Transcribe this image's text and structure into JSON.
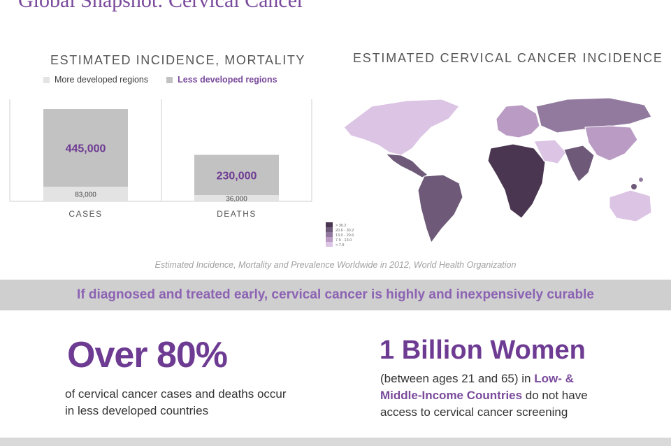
{
  "page": {
    "title": "Global Snapshot: Cervical Cancer",
    "source": "Estimated Incidence, Mortality and Prevalence Worldwide in 2012, World Health Organization",
    "banner": "If diagnosed and treated early,  cervical cancer is highly and inexpensively curable"
  },
  "colors": {
    "purple": "#6e3b93",
    "accent": "#8c62b3",
    "more_developed": "#e3e3e3",
    "less_developed": "#c2c2c2"
  },
  "chart_data": [
    {
      "type": "bar",
      "stacked": true,
      "title": "ESTIMATED INCIDENCE, MORTALITY",
      "categories": [
        "CASES",
        "DEATHS"
      ],
      "series": [
        {
          "name": "More developed regions",
          "values": [
            83000,
            36000
          ]
        },
        {
          "name": "Less developed regions",
          "values": [
            445000,
            230000
          ]
        }
      ],
      "data_labels": {
        "more_developed": [
          "83,000",
          "36,000"
        ],
        "less_developed": [
          "445,000",
          "230,000"
        ]
      },
      "legend_position": "top",
      "ylim": [
        0,
        600000
      ]
    },
    {
      "type": "heatmap",
      "title": "ESTIMATED CERVICAL CANCER INCIDENCE",
      "legend": {
        "bins": [
          "> 30.2",
          "20.6 - 30.2",
          "13.0 - 20.6",
          "7.9 - 13.0",
          "< 7.9"
        ],
        "colors": [
          "#4a3650",
          "#6e5a78",
          "#927a9e",
          "#b99bc4",
          "#dcc4e4"
        ]
      },
      "regions": [
        {
          "name": "North America",
          "bin": 4
        },
        {
          "name": "Central America",
          "bin": 1
        },
        {
          "name": "South America",
          "bin": 1
        },
        {
          "name": "Europe",
          "bin": 3
        },
        {
          "name": "Africa",
          "bin": 0
        },
        {
          "name": "Middle East",
          "bin": 4
        },
        {
          "name": "Russia / Central Asia",
          "bin": 2
        },
        {
          "name": "South Asia",
          "bin": 1
        },
        {
          "name": "East Asia",
          "bin": 3
        },
        {
          "name": "Australia",
          "bin": 4
        }
      ]
    }
  ],
  "stats": {
    "stat1": {
      "big": "Over 80%",
      "text": "of cervical cancer cases and deaths occur in less developed countries"
    },
    "stat2": {
      "big": "1 Billion Women",
      "text_before": "(between ages 21 and 65) in ",
      "highlight": "Low- & Middle-Income Countries",
      "text_after": " do not have access to cervical cancer screening"
    }
  }
}
